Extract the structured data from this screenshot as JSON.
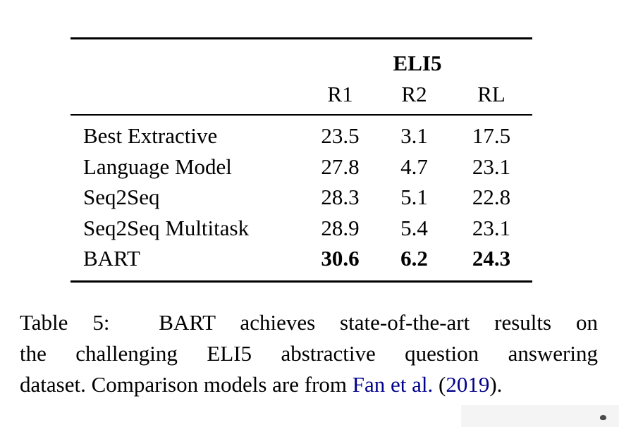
{
  "table": {
    "group_header": "ELI5",
    "columns": [
      "R1",
      "R2",
      "RL"
    ],
    "rows": [
      {
        "label": "Best Extractive",
        "r1": "23.5",
        "r2": "3.1",
        "rl": "17.5"
      },
      {
        "label": "Language Model",
        "r1": "27.8",
        "r2": "4.7",
        "rl": "23.1"
      },
      {
        "label": "Seq2Seq",
        "r1": "28.3",
        "r2": "5.1",
        "rl": "22.8"
      },
      {
        "label": "Seq2Seq Multitask",
        "r1": "28.9",
        "r2": "5.4",
        "rl": "23.1"
      },
      {
        "label": "BART",
        "r1": "30.6",
        "r2": "6.2",
        "rl": "24.3"
      }
    ]
  },
  "caption": {
    "line1": "Table 5:  BART achieves state-of-the-art results on",
    "line2": "the challenging ELI5 abstractive question answering",
    "line3_prefix": "dataset. Comparison models are from ",
    "citation_link": "Fan et al.",
    "line3_mid": " (",
    "year_link": "2019",
    "line3_suffix": ")."
  },
  "colors": {
    "text": "#000000",
    "link": "#00008B",
    "rule": "#000000",
    "background": "#ffffff"
  },
  "chart_data": {
    "type": "table",
    "title": "ELI5",
    "categories": [
      "Best Extractive",
      "Language Model",
      "Seq2Seq",
      "Seq2Seq Multitask",
      "BART"
    ],
    "series": [
      {
        "name": "R1",
        "values": [
          23.5,
          27.8,
          28.3,
          28.9,
          30.6
        ]
      },
      {
        "name": "R2",
        "values": [
          3.1,
          4.7,
          5.1,
          5.4,
          6.2
        ]
      },
      {
        "name": "RL",
        "values": [
          17.5,
          23.1,
          22.8,
          23.1,
          24.3
        ]
      }
    ],
    "emphasis": "BART row values are bold (best results)"
  }
}
